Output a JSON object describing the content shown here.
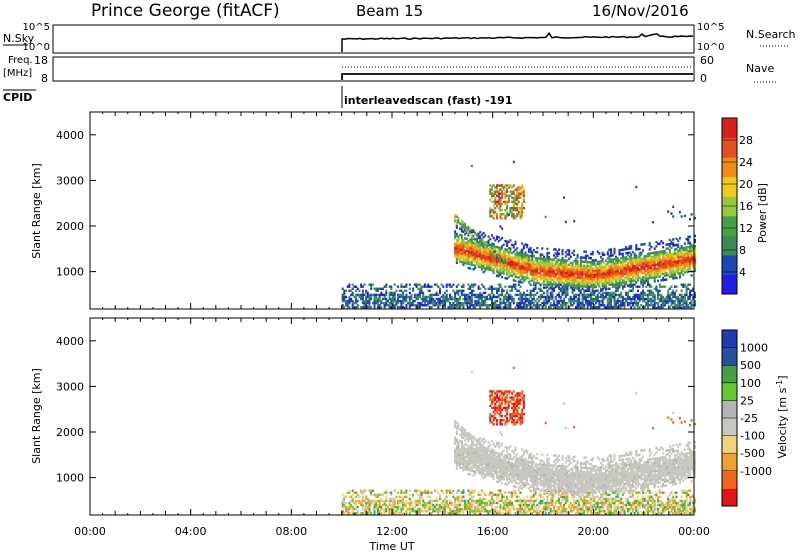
{
  "header": {
    "station": "Prince George (fitACF)",
    "beam": "Beam 15",
    "date": "16/Nov/2016"
  },
  "strips": {
    "nsky": {
      "label": "N.Sky",
      "ticks": [
        "10^5",
        "10^0"
      ],
      "right_label": "N.Search"
    },
    "freq": {
      "label_line1": "Freq.",
      "label_line2": "[MHz]",
      "left_ticks": [
        "18",
        "8"
      ],
      "right_ticks": [
        "60",
        "0"
      ],
      "right_label": "Nave"
    },
    "cpid": {
      "label": "CPID",
      "value": "interleavedscan (fast) -191"
    }
  },
  "colors": {
    "power_scale": [
      "#1e1ee6",
      "#1e46b4",
      "#3c8c50",
      "#46a046",
      "#96c83c",
      "#f0c81e",
      "#f08c14",
      "#e6501e",
      "#dc1e1e"
    ],
    "velocity_scale": [
      "#e61414",
      "#f0641e",
      "#f0a032",
      "#f0d278",
      "#c8c8c0",
      "#b4b4b4",
      "#64c832",
      "#46a046",
      "#2850a0",
      "#1e3cb4"
    ],
    "ground_scatter": "#c0c0b8"
  },
  "chart_data": [
    {
      "type": "heatmap",
      "title": "Power",
      "xlabel": "Time UT",
      "ylabel": "Slant Range [km]",
      "xlim": [
        "00:00",
        "24:00"
      ],
      "ylim": [
        180,
        4500
      ],
      "x_ticks": [
        "00:00",
        "04:00",
        "08:00",
        "12:00",
        "16:00",
        "20:00",
        "00:00"
      ],
      "y_ticks": [
        1000,
        2000,
        3000,
        4000
      ],
      "colorbar": {
        "label": "Power [dB]",
        "ticks": [
          4,
          8,
          12,
          16,
          20,
          24,
          28
        ],
        "range": [
          0,
          32
        ]
      },
      "data_start_hour": 10.0,
      "features": [
        {
          "name": "near-range echoes",
          "hours": [
            10.0,
            24.0
          ],
          "range_km": [
            200,
            700
          ]
        },
        {
          "name": "main band",
          "hours": [
            14.5,
            24.0
          ],
          "range_km": [
            800,
            1600
          ],
          "peak_power": 28
        },
        {
          "name": "upper patch",
          "hours": [
            15.8,
            17.2
          ],
          "range_km": [
            2200,
            2800
          ],
          "peak_power": 28
        }
      ]
    },
    {
      "type": "heatmap",
      "title": "Velocity",
      "xlabel": "Time UT",
      "ylabel": "Slant Range [km]",
      "xlim": [
        "00:00",
        "24:00"
      ],
      "ylim": [
        180,
        4500
      ],
      "x_ticks": [
        "00:00",
        "04:00",
        "08:00",
        "12:00",
        "16:00",
        "20:00",
        "00:00"
      ],
      "y_ticks": [
        1000,
        2000,
        3000,
        4000
      ],
      "colorbar": {
        "label": "Velocity [m s^-1]",
        "ticks": [
          "1000",
          "500",
          "100",
          "25",
          "-25",
          "-100",
          "-500",
          "-1000"
        ]
      },
      "data_start_hour": 10.0
    }
  ]
}
